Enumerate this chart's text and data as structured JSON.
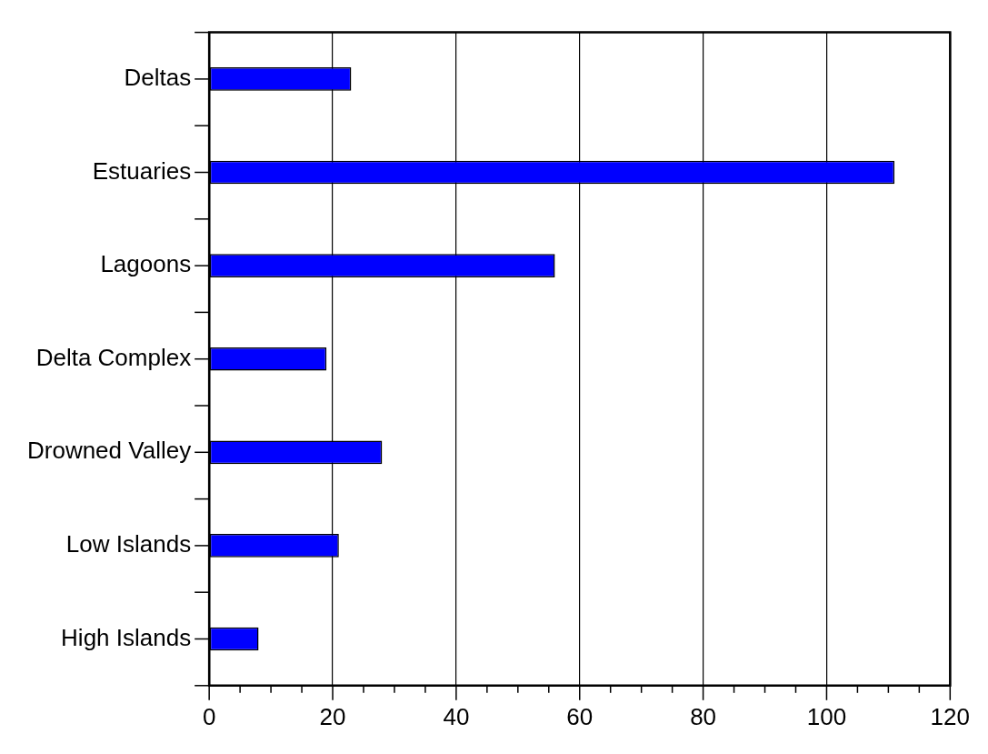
{
  "chart_data": {
    "type": "bar",
    "orientation": "horizontal",
    "categories": [
      "Deltas",
      "Estuaries",
      "Lagoons",
      "Delta Complex",
      "Drowned Valley",
      "Low Islands",
      "High Islands"
    ],
    "values": [
      23,
      111,
      56,
      19,
      28,
      21,
      8
    ],
    "color": "#0000ff",
    "xlim": [
      0,
      120
    ],
    "xticks": [
      0,
      {
        "value": 5,
        "label": null
      },
      {
        "value": 10,
        "label": null
      },
      {
        "value": 15,
        "label": null
      },
      20,
      {
        "value": 25,
        "label": null
      },
      {
        "value": 30,
        "label": null
      },
      {
        "value": 35,
        "label": null
      },
      40,
      {
        "value": 45,
        "label": null
      },
      {
        "value": 50,
        "label": null
      },
      {
        "value": 55,
        "label": null
      },
      60,
      {
        "value": 65,
        "label": null
      },
      {
        "value": 70,
        "label": null
      },
      {
        "value": 75,
        "label": null
      },
      80,
      {
        "value": 85,
        "label": null
      },
      {
        "value": 90,
        "label": null
      },
      {
        "value": 95,
        "label": null
      },
      100,
      {
        "value": 105,
        "label": null
      },
      {
        "value": 110,
        "label": null
      },
      {
        "value": 115,
        "label": null
      },
      120
    ],
    "grid": "x"
  }
}
